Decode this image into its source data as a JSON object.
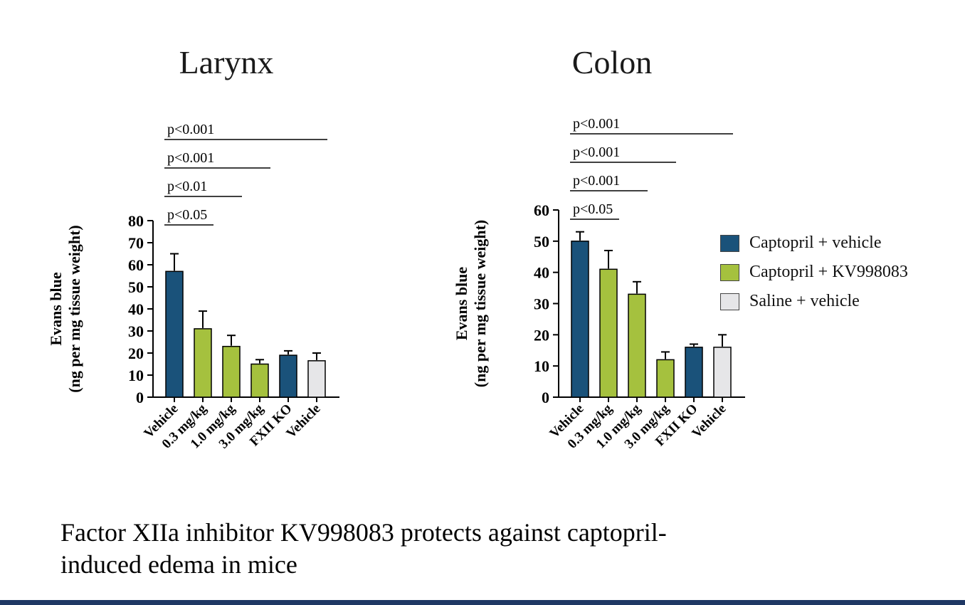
{
  "page": {
    "caption_line1": "Factor XIIa inhibitor KV998083 protects against captopril-",
    "caption_line2": "induced edema in mice",
    "footer_color": "#1f3864",
    "background": "#ffffff"
  },
  "colors": {
    "navy": "#1a527a",
    "green": "#a5c13e",
    "gray": "#e6e6e8"
  },
  "legend": {
    "items": [
      {
        "label": "Captopril + vehicle",
        "color_key": "navy"
      },
      {
        "label": "Captopril + KV998083",
        "color_key": "green"
      },
      {
        "label": "Saline + vehicle",
        "color_key": "gray"
      }
    ]
  },
  "chart_data": [
    {
      "type": "bar",
      "title": "Larynx",
      "ylabel_line1": "Evans blue",
      "ylabel_line2": "(ng per mg tissue weight)",
      "ylim": [
        0,
        80
      ],
      "ytick_interval": 10,
      "ytick_labels": [
        "0",
        "10",
        "20",
        "30",
        "40",
        "50",
        "60",
        "70",
        "80"
      ],
      "categories": [
        "Vehicle",
        "0.3 mg/kg",
        "1.0 mg/kg",
        "3.0 mg/kg",
        "FXII KO",
        "Vehicle"
      ],
      "values": [
        57,
        31,
        23,
        15,
        19,
        16.5
      ],
      "errors": [
        8,
        8,
        5,
        2,
        2,
        3.5
      ],
      "bar_colors": [
        "navy",
        "green",
        "green",
        "green",
        "navy",
        "gray"
      ],
      "grid": false,
      "significance": [
        {
          "label": "p<0.05",
          "from": 0,
          "to": 1
        },
        {
          "label": "p<0.01",
          "from": 0,
          "to": 2
        },
        {
          "label": "p<0.001",
          "from": 0,
          "to": 3
        },
        {
          "label": "p<0.001",
          "from": 0,
          "to": 5
        }
      ]
    },
    {
      "type": "bar",
      "title": "Colon",
      "ylabel_line1": "Evans blue",
      "ylabel_line2": "(ng per mg tissue weight)",
      "ylim": [
        0,
        60
      ],
      "ytick_interval": 10,
      "ytick_labels": [
        "0",
        "10",
        "20",
        "30",
        "40",
        "50",
        "60"
      ],
      "categories": [
        "Vehicle",
        "0.3 mg/kg",
        "1.0 mg/kg",
        "3.0 mg/kg",
        "FXII KO",
        "Vehicle"
      ],
      "values": [
        50,
        41,
        33,
        12,
        16,
        16
      ],
      "errors": [
        3,
        6,
        4,
        2.5,
        1,
        4
      ],
      "bar_colors": [
        "navy",
        "green",
        "green",
        "green",
        "navy",
        "gray"
      ],
      "grid": false,
      "significance": [
        {
          "label": "p<0.05",
          "from": 0,
          "to": 1
        },
        {
          "label": "p<0.001",
          "from": 0,
          "to": 2
        },
        {
          "label": "p<0.001",
          "from": 0,
          "to": 3
        },
        {
          "label": "p<0.001",
          "from": 0,
          "to": 5
        }
      ]
    }
  ]
}
